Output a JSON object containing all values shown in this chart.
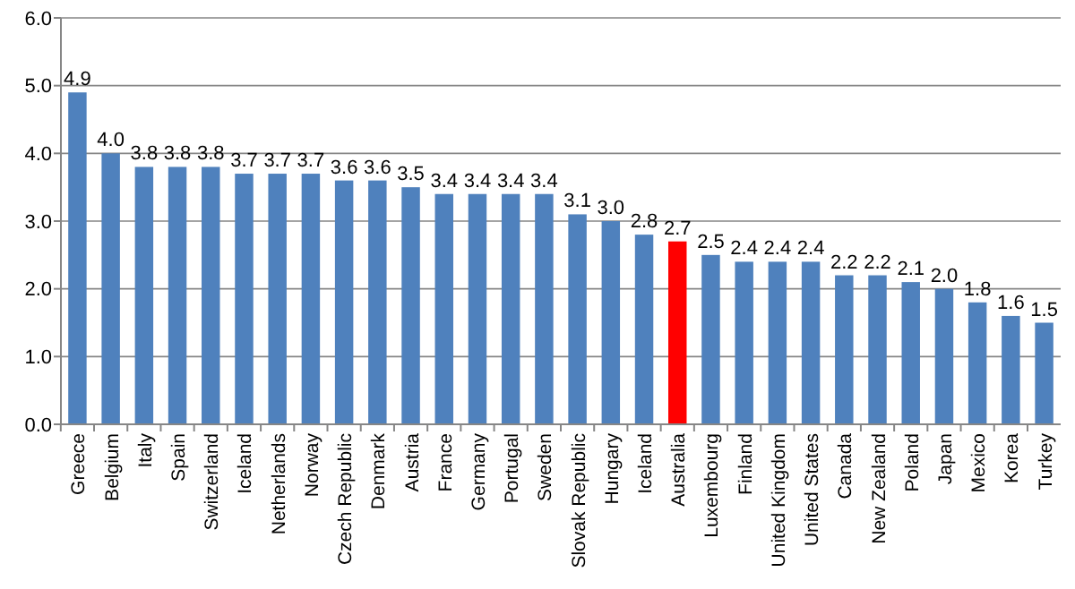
{
  "chart_data": {
    "type": "bar",
    "categories": [
      "Greece",
      "Belgium",
      "Italy",
      "Spain",
      "Switzerland",
      "Iceland",
      "Netherlands",
      "Norway",
      "Czech Republic",
      "Denmark",
      "Austria",
      "France",
      "Germany",
      "Portugal",
      "Sweden",
      "Slovak Republic",
      "Hungary",
      "Iceland",
      "Australia",
      "Luxembourg",
      "Finland",
      "United Kingdom",
      "United States",
      "Canada",
      "New Zealand",
      "Poland",
      "Japan",
      "Mexico",
      "Korea",
      "Turkey"
    ],
    "values": [
      4.9,
      4.0,
      3.8,
      3.8,
      3.8,
      3.7,
      3.7,
      3.7,
      3.6,
      3.6,
      3.5,
      3.4,
      3.4,
      3.4,
      3.4,
      3.1,
      3.0,
      2.8,
      2.7,
      2.5,
      2.4,
      2.4,
      2.4,
      2.2,
      2.2,
      2.1,
      2.0,
      1.8,
      1.6,
      1.5
    ],
    "value_labels": [
      "4.9",
      "4.0",
      "3.8",
      "3.8",
      "3.8",
      "3.7",
      "3.7",
      "3.7",
      "3.6",
      "3.6",
      "3.5",
      "3.4",
      "3.4",
      "3.4",
      "3.4",
      "3.1",
      "3.0",
      "2.8",
      "2.7",
      "2.5",
      "2.4",
      "2.4",
      "2.4",
      "2.2",
      "2.2",
      "2.1",
      "2.0",
      "1.8",
      "1.6",
      "1.5"
    ],
    "colors": [
      "#4f81bd",
      "#4f81bd",
      "#4f81bd",
      "#4f81bd",
      "#4f81bd",
      "#4f81bd",
      "#4f81bd",
      "#4f81bd",
      "#4f81bd",
      "#4f81bd",
      "#4f81bd",
      "#4f81bd",
      "#4f81bd",
      "#4f81bd",
      "#4f81bd",
      "#4f81bd",
      "#4f81bd",
      "#4f81bd",
      "#ff0000",
      "#4f81bd",
      "#4f81bd",
      "#4f81bd",
      "#4f81bd",
      "#4f81bd",
      "#4f81bd",
      "#4f81bd",
      "#4f81bd",
      "#4f81bd",
      "#4f81bd",
      "#4f81bd"
    ],
    "ylim": [
      0,
      6
    ],
    "yticks": [
      {
        "value": 0,
        "label": "0.0"
      },
      {
        "value": 1,
        "label": "1.0"
      },
      {
        "value": 2,
        "label": "2.0"
      },
      {
        "value": 3,
        "label": "3.0"
      },
      {
        "value": 4,
        "label": "4.0"
      },
      {
        "value": 5,
        "label": "5.0"
      },
      {
        "value": 6,
        "label": "6.0"
      }
    ],
    "grid": "y"
  }
}
